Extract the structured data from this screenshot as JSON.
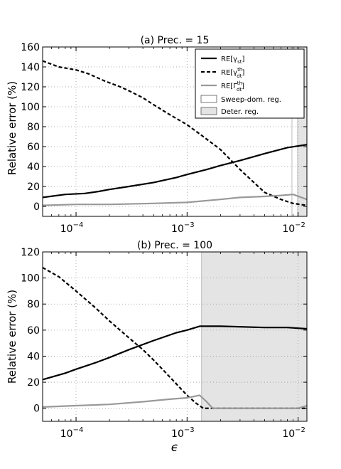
{
  "figure": {
    "xlabel": "ϵ",
    "ylabel": "Relative error (%)"
  },
  "chart_data": [
    {
      "type": "line",
      "title": "(a) Prec. = 15",
      "xscale": "log",
      "xlim": [
        5e-05,
        0.012
      ],
      "ylim": [
        -10,
        160
      ],
      "yticks": [
        0,
        20,
        40,
        60,
        80,
        100,
        120,
        140,
        160
      ],
      "xticks": [
        {
          "value": 0.0001,
          "label": "10",
          "exp": "−4"
        },
        {
          "value": 0.001,
          "label": "10",
          "exp": "−3"
        },
        {
          "value": 0.01,
          "label": "10",
          "exp": "−2"
        }
      ],
      "grid": true,
      "legend": {
        "position": "top-right"
      },
      "regions": [
        {
          "name": "Sweep-dom. reg.",
          "x0": 0.0088,
          "x1": 0.0099,
          "fill": "#ffffff"
        },
        {
          "name": "Deter. reg.",
          "x0": 0.0099,
          "x1": 0.012,
          "fill": "#e4e4e4"
        }
      ],
      "series": [
        {
          "name": "RE[γst]",
          "label_base": "RE[γ",
          "label_sub": "st",
          "label_sup": "",
          "label_end": "]",
          "style": "solid",
          "color": "#000000",
          "x": [
            5e-05,
            8e-05,
            0.00012,
            0.00016,
            0.0002,
            0.0003,
            0.0005,
            0.0008,
            0.001,
            0.0015,
            0.002,
            0.003,
            0.005,
            0.008,
            0.012
          ],
          "y": [
            9,
            12,
            13,
            15,
            17,
            20,
            24,
            29,
            32,
            37,
            41,
            46,
            53,
            59,
            62
          ]
        },
        {
          "name": "RE[γdt th]",
          "label_base": "RE[γ",
          "label_sub": "dt",
          "label_sup": "th",
          "label_end": "]",
          "style": "dashed",
          "color": "#000000",
          "x": [
            5e-05,
            7e-05,
            0.0001,
            0.00013,
            0.00018,
            0.00025,
            0.0003,
            0.0004,
            0.0005,
            0.0007,
            0.001,
            0.0014,
            0.002,
            0.003,
            0.004,
            0.005,
            0.007,
            0.009,
            0.012
          ],
          "y": [
            146,
            140,
            137,
            133,
            126,
            120,
            116,
            109,
            102,
            92,
            82,
            70,
            57,
            37,
            24,
            14,
            7,
            3,
            1
          ]
        },
        {
          "name": "RE[Γdt th]",
          "label_base": "RE[Γ",
          "label_sub": "dt",
          "label_sup": "th",
          "label_end": "]",
          "style": "solid",
          "color": "#999999",
          "x": [
            5e-05,
            0.0001,
            0.0002,
            0.0005,
            0.001,
            0.002,
            0.003,
            0.005,
            0.007,
            0.009,
            0.012
          ],
          "y": [
            1,
            2,
            2,
            3,
            4,
            7,
            9,
            10,
            11,
            12,
            7
          ]
        }
      ]
    },
    {
      "type": "line",
      "title": "(b) Prec. = 100",
      "xscale": "log",
      "xlim": [
        5e-05,
        0.012
      ],
      "ylim": [
        -10,
        120
      ],
      "yticks": [
        0,
        20,
        40,
        60,
        80,
        100,
        120
      ],
      "xticks": [
        {
          "value": 0.0001,
          "label": "10",
          "exp": "−4"
        },
        {
          "value": 0.001,
          "label": "10",
          "exp": "−3"
        },
        {
          "value": 0.01,
          "label": "10",
          "exp": "−2"
        }
      ],
      "grid": true,
      "regions": [
        {
          "name": "Deter. reg.",
          "x0": 0.00135,
          "x1": 0.012,
          "fill": "#e4e4e4"
        }
      ],
      "series": [
        {
          "name": "RE[γst]",
          "style": "solid",
          "color": "#000000",
          "x": [
            5e-05,
            8e-05,
            0.0001,
            0.00015,
            0.0002,
            0.0003,
            0.0005,
            0.0008,
            0.001,
            0.0013,
            0.002,
            0.005,
            0.008,
            0.012
          ],
          "y": [
            22,
            27,
            30,
            35,
            39,
            45,
            52,
            58,
            60,
            63,
            63,
            62,
            62,
            61
          ]
        },
        {
          "name": "RE[γdt th]",
          "style": "dashed",
          "color": "#000000",
          "x": [
            5e-05,
            7e-05,
            0.0001,
            0.00015,
            0.0002,
            0.0003,
            0.0004,
            0.0005,
            0.0007,
            0.001,
            0.0012,
            0.0014,
            0.002,
            0.005,
            0.01,
            0.012
          ],
          "y": [
            108,
            101,
            90,
            77,
            67,
            54,
            45,
            37,
            24,
            10,
            4,
            0,
            0,
            0,
            0,
            0
          ]
        },
        {
          "name": "RE[Γdt th]",
          "style": "solid",
          "color": "#999999",
          "x": [
            5e-05,
            0.0001,
            0.0002,
            0.0004,
            0.0007,
            0.001,
            0.0013,
            0.0015,
            0.0017,
            0.0025,
            0.005,
            0.01,
            0.012
          ],
          "y": [
            1,
            2,
            3,
            5,
            7,
            8,
            10,
            5,
            0,
            0,
            0,
            0,
            2
          ]
        }
      ]
    }
  ]
}
